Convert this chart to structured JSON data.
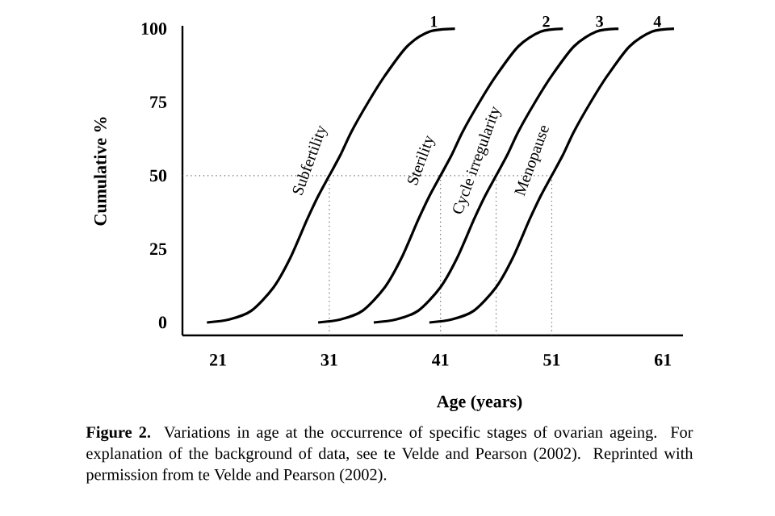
{
  "chart_data": {
    "type": "line",
    "xlabel": "Age (years)",
    "ylabel": "Cumulative %",
    "xlim": [
      17.8,
      62.8
    ],
    "ylim": [
      -4.4,
      101
    ],
    "xticks": [
      21,
      31,
      41,
      51,
      61
    ],
    "yticks": [
      0,
      25,
      50,
      75,
      100
    ],
    "grid": false,
    "marker": "none",
    "line_style": "solid",
    "series": [
      {
        "name": "Subfertility",
        "color": "#000000",
        "x": [
          20,
          22,
          24,
          26,
          27.5,
          29,
          30,
          31,
          32,
          33,
          34.5,
          36,
          38,
          40,
          42.3
        ],
        "values": [
          0,
          1,
          4,
          12,
          22,
          35,
          43,
          50,
          57,
          65,
          75,
          84,
          94,
          99,
          100
        ]
      },
      {
        "name": "Sterility",
        "color": "#000000",
        "x": [
          30,
          32,
          34,
          36,
          37.5,
          39,
          40,
          41,
          42,
          43,
          44.5,
          46,
          48,
          50,
          52
        ],
        "values": [
          0,
          1,
          4,
          12,
          22,
          35,
          43,
          50,
          57,
          65,
          75,
          84,
          94,
          99,
          100
        ]
      },
      {
        "name": "Cycle irregularity",
        "color": "#000000",
        "x": [
          35,
          37,
          39,
          41,
          42.5,
          44,
          45,
          46,
          47,
          48,
          49.5,
          51,
          53,
          55,
          57
        ],
        "values": [
          0,
          1,
          4,
          12,
          22,
          35,
          43,
          50,
          57,
          65,
          75,
          84,
          94,
          99,
          100
        ]
      },
      {
        "name": "Menopause",
        "color": "#000000",
        "x": [
          40,
          42,
          44,
          46,
          47.5,
          49,
          50,
          51,
          52,
          53,
          54.5,
          56,
          58,
          60,
          62
        ],
        "values": [
          0,
          1,
          4,
          12,
          22,
          35,
          43,
          50,
          57,
          65,
          75,
          84,
          94,
          99,
          100
        ]
      }
    ],
    "ref_lines": [
      {
        "axis": "y",
        "value": 50,
        "color": "#555555",
        "line_style": "dotted"
      },
      {
        "axis": "x",
        "value": 31,
        "color": "#555555",
        "line_style": "dotted"
      },
      {
        "axis": "x",
        "value": 41,
        "color": "#555555",
        "line_style": "dotted"
      },
      {
        "axis": "x",
        "value": 46,
        "color": "#555555",
        "line_style": "dotted"
      },
      {
        "axis": "x",
        "value": 51,
        "color": "#555555",
        "line_style": "dotted"
      }
    ],
    "annotations": [
      {
        "text": "1",
        "x": 40.4,
        "y": 100
      },
      {
        "text": "2",
        "x": 50.5,
        "y": 100
      },
      {
        "text": "3",
        "x": 55.3,
        "y": 100
      },
      {
        "text": "4",
        "x": 60.5,
        "y": 100
      },
      "**Figure 2.** Variations in age at the occurrence of specific stages of ovarian ageing. For explanation of the background of data, see te Velde and Pearson (2002). Reprinted with permission from te Velde and Pearson (2002)."
    ]
  }
}
